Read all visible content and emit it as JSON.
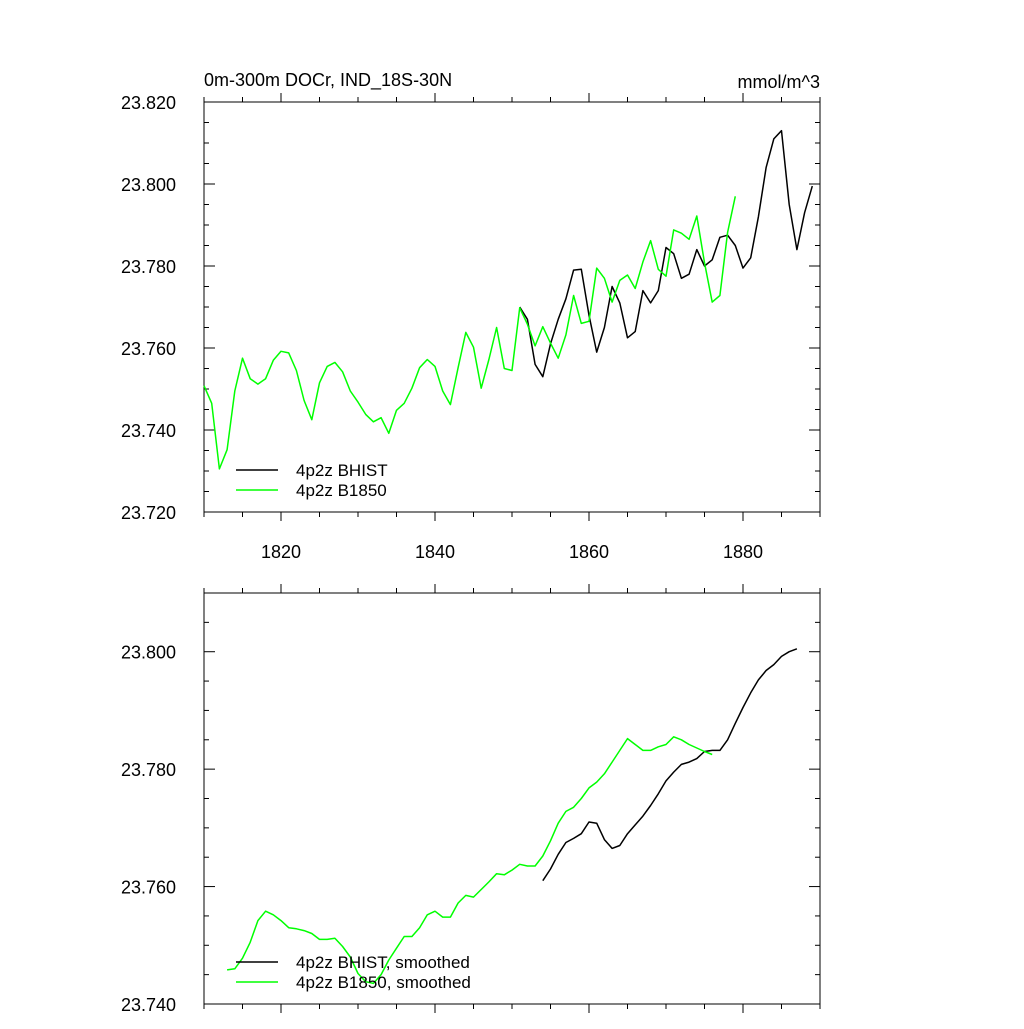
{
  "chart_data": [
    {
      "type": "line",
      "title": "0m-300m DOCr, IND_18S-30N",
      "units": "mmol/m^3",
      "xlim": [
        1810,
        1890
      ],
      "ylim": [
        23.72,
        23.82
      ],
      "x_ticks": [
        1820,
        1840,
        1860,
        1880
      ],
      "y_ticks": [
        23.72,
        23.74,
        23.76,
        23.78,
        23.8,
        23.82
      ],
      "y_tick_labels": [
        "23.720",
        "23.740",
        "23.760",
        "23.780",
        "23.800",
        "23.820"
      ],
      "legend": "bottom-left",
      "series": [
        {
          "name": "4p2z BHIST",
          "color": "#000000",
          "x": [
            1851,
            1852,
            1853,
            1854,
            1855,
            1856,
            1857,
            1858,
            1859,
            1860,
            1861,
            1862,
            1863,
            1864,
            1865,
            1866,
            1867,
            1868,
            1869,
            1870,
            1871,
            1872,
            1873,
            1874,
            1875,
            1876,
            1877,
            1878,
            1879,
            1880,
            1881,
            1882,
            1883,
            1884,
            1885,
            1886,
            1887,
            1888,
            1889
          ],
          "values": [
            23.77,
            23.767,
            23.756,
            23.753,
            23.761,
            23.767,
            23.772,
            23.779,
            23.7792,
            23.768,
            23.759,
            23.765,
            23.775,
            23.771,
            23.7625,
            23.764,
            23.774,
            23.771,
            23.774,
            23.7845,
            23.783,
            23.777,
            23.778,
            23.784,
            23.78,
            23.7815,
            23.787,
            23.7875,
            23.785,
            23.7795,
            23.782,
            23.792,
            23.804,
            23.811,
            23.813,
            23.795,
            23.784,
            23.793,
            23.7995
          ]
        },
        {
          "name": "4p2z B1850",
          "color": "#00ff00",
          "x": [
            1810,
            1811,
            1812,
            1813,
            1814,
            1815,
            1816,
            1817,
            1818,
            1819,
            1820,
            1821,
            1822,
            1823,
            1824,
            1825,
            1826,
            1827,
            1828,
            1829,
            1830,
            1831,
            1832,
            1833,
            1834,
            1835,
            1836,
            1837,
            1838,
            1839,
            1840,
            1841,
            1842,
            1843,
            1844,
            1845,
            1846,
            1847,
            1848,
            1849,
            1850,
            1851,
            1852,
            1853,
            1854,
            1855,
            1856,
            1857,
            1858,
            1859,
            1860,
            1861,
            1862,
            1863,
            1864,
            1865,
            1866,
            1867,
            1868,
            1869,
            1870,
            1871,
            1872,
            1873,
            1874,
            1875,
            1876,
            1877,
            1878,
            1879
          ],
          "values": [
            23.7508,
            23.7465,
            23.7305,
            23.7352,
            23.7495,
            23.7575,
            23.7525,
            23.7512,
            23.7525,
            23.757,
            23.7592,
            23.7588,
            23.7545,
            23.7472,
            23.7425,
            23.7515,
            23.7555,
            23.7565,
            23.7542,
            23.7495,
            23.7468,
            23.7438,
            23.742,
            23.743,
            23.7392,
            23.7448,
            23.7465,
            23.7502,
            23.7552,
            23.7572,
            23.7555,
            23.7495,
            23.7462,
            23.7552,
            23.7638,
            23.7602,
            23.7502,
            23.7572,
            23.765,
            23.755,
            23.7545,
            23.7698,
            23.7658,
            23.7605,
            23.7652,
            23.7612,
            23.7575,
            23.7632,
            23.7728,
            23.766,
            23.7665,
            23.7795,
            23.777,
            23.7712,
            23.7765,
            23.7778,
            23.7745,
            23.781,
            23.7862,
            23.7792,
            23.7775,
            23.7888,
            23.788,
            23.7865,
            23.7922,
            23.7808,
            23.7712,
            23.7728,
            23.7882,
            23.797
          ]
        }
      ]
    },
    {
      "type": "line",
      "title": "",
      "xlim": [
        1810,
        1890
      ],
      "ylim": [
        23.74,
        23.81
      ],
      "x_ticks": [
        1820,
        1840,
        1860,
        1880
      ],
      "y_ticks": [
        23.74,
        23.76,
        23.78,
        23.8
      ],
      "y_tick_labels": [
        "23.740",
        "23.760",
        "23.780",
        "23.800"
      ],
      "legend": "bottom-left",
      "series": [
        {
          "name": "4p2z BHIST, smoothed",
          "color": "#000000",
          "x": [
            1854,
            1855,
            1856,
            1857,
            1858,
            1859,
            1860,
            1861,
            1862,
            1863,
            1864,
            1865,
            1866,
            1867,
            1868,
            1869,
            1870,
            1871,
            1872,
            1873,
            1874,
            1875,
            1876,
            1877,
            1878,
            1879,
            1880,
            1881,
            1882,
            1883,
            1884,
            1885,
            1886,
            1887
          ],
          "values": [
            23.761,
            23.763,
            23.7655,
            23.7675,
            23.7682,
            23.769,
            23.771,
            23.7708,
            23.768,
            23.7665,
            23.767,
            23.769,
            23.7705,
            23.772,
            23.7738,
            23.7758,
            23.778,
            23.7795,
            23.7808,
            23.7812,
            23.7818,
            23.783,
            23.7832,
            23.7832,
            23.785,
            23.7878,
            23.7905,
            23.793,
            23.7952,
            23.7968,
            23.7978,
            23.7992,
            23.8,
            23.8005
          ]
        },
        {
          "name": "4p2z B1850, smoothed",
          "color": "#00ff00",
          "x": [
            1813,
            1814,
            1815,
            1816,
            1817,
            1818,
            1819,
            1820,
            1821,
            1822,
            1823,
            1824,
            1825,
            1826,
            1827,
            1828,
            1829,
            1830,
            1831,
            1832,
            1833,
            1834,
            1835,
            1836,
            1837,
            1838,
            1839,
            1840,
            1841,
            1842,
            1843,
            1844,
            1845,
            1846,
            1847,
            1848,
            1849,
            1850,
            1851,
            1852,
            1853,
            1854,
            1855,
            1856,
            1857,
            1858,
            1859,
            1860,
            1861,
            1862,
            1863,
            1864,
            1865,
            1866,
            1867,
            1868,
            1869,
            1870,
            1871,
            1872,
            1873,
            1874,
            1875,
            1876
          ],
          "values": [
            23.7458,
            23.746,
            23.7478,
            23.7505,
            23.7542,
            23.7558,
            23.7552,
            23.7542,
            23.753,
            23.7528,
            23.7525,
            23.752,
            23.751,
            23.751,
            23.7512,
            23.7498,
            23.748,
            23.7452,
            23.7438,
            23.7435,
            23.745,
            23.7475,
            23.7495,
            23.7515,
            23.7515,
            23.753,
            23.7552,
            23.7558,
            23.7548,
            23.7548,
            23.7572,
            23.7585,
            23.7582,
            23.7595,
            23.7608,
            23.7622,
            23.762,
            23.7628,
            23.7638,
            23.7635,
            23.7635,
            23.7652,
            23.7678,
            23.7708,
            23.7728,
            23.7735,
            23.775,
            23.7768,
            23.7778,
            23.7792,
            23.7812,
            23.7832,
            23.7852,
            23.7842,
            23.7832,
            23.7832,
            23.7838,
            23.7842,
            23.7855,
            23.785,
            23.7842,
            23.7836,
            23.783,
            23.7825
          ]
        }
      ]
    }
  ]
}
